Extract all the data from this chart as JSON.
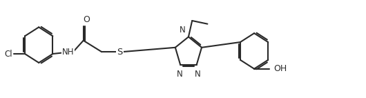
{
  "background_color": "#ffffff",
  "line_color": "#2a2a2a",
  "line_width": 1.5,
  "font_size": 8.5,
  "figsize": [
    5.3,
    1.42
  ],
  "dpi": 100,
  "xlim": [
    0,
    10.0
  ],
  "ylim": [
    -1.1,
    1.3
  ]
}
